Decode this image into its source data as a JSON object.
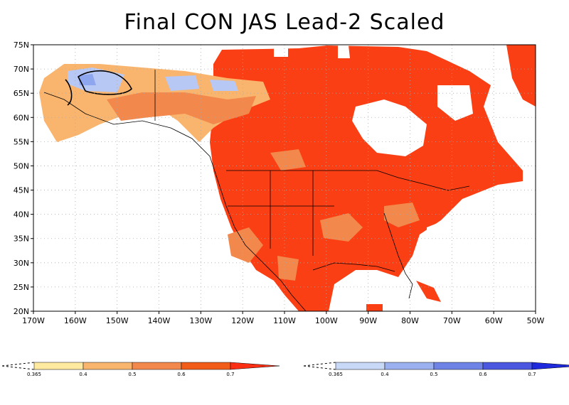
{
  "title": "Final CON JAS Lead-2 Scaled",
  "lat_labels": [
    "75N",
    "70N",
    "65N",
    "60N",
    "55N",
    "50N",
    "45N",
    "40N",
    "35N",
    "30N",
    "25N",
    "20N"
  ],
  "lon_labels": [
    "170W",
    "160W",
    "150W",
    "140W",
    "130W",
    "120W",
    "110W",
    "100W",
    "90W",
    "80W",
    "70W",
    "60W",
    "50W"
  ],
  "warm_colorbar": {
    "tick_labels": [
      "0.365",
      "0.4",
      "0.5",
      "0.6",
      "0.7"
    ],
    "colors": [
      "#ffeaa0",
      "#f9b56e",
      "#f2884b",
      "#f25c19",
      "#fb2f14"
    ]
  },
  "cold_colorbar": {
    "tick_labels": [
      "0.365",
      "0.4",
      "0.5",
      "0.6",
      "0.7"
    ],
    "colors": [
      "#c8d8f7",
      "#9ab0ef",
      "#6f82e6",
      "#4a57de",
      "#1e2adb"
    ]
  },
  "map_colors": {
    "land_main": "#fb3f14",
    "land_dark": "#f02a0c",
    "land_mid": "#f2884b",
    "land_light": "#f9b56e",
    "cold_light": "#b8c8f4",
    "cold_mid": "#8ea6ee",
    "border": "#000000",
    "grid": "#aaaaaa"
  }
}
